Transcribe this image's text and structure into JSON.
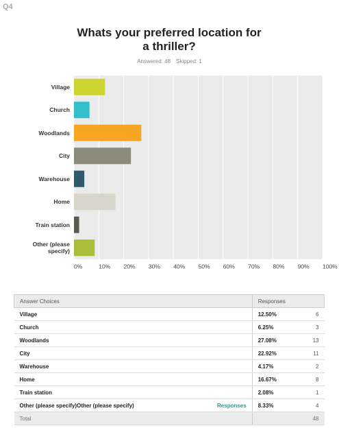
{
  "question": "Q4",
  "chart_data": {
    "type": "bar",
    "orientation": "horizontal",
    "title": "Whats your preferred location for a thriller?",
    "answered": "Answered: 48",
    "skipped": "Skipped: 1",
    "categories": [
      "Village",
      "Church",
      "Woodlands",
      "City",
      "Warehouse",
      "Home",
      "Train station",
      "Other (please specify)"
    ],
    "values": [
      12.5,
      6.25,
      27.08,
      22.92,
      4.17,
      16.67,
      2.08,
      8.33
    ],
    "colors": [
      "#cdd533",
      "#33bfc9",
      "#f6a623",
      "#8a8b7b",
      "#2f5c6d",
      "#d6d6ca",
      "#585c50",
      "#a9bd3b"
    ],
    "xlim": [
      0,
      100
    ],
    "xticks": [
      {
        "value": 0,
        "label": "0%"
      },
      {
        "value": 10,
        "label": "10%"
      },
      {
        "value": 20,
        "label": "20%"
      },
      {
        "value": 30,
        "label": "30%"
      },
      {
        "value": 40,
        "label": "40%"
      },
      {
        "value": 50,
        "label": "50%"
      },
      {
        "value": 60,
        "label": "60%"
      },
      {
        "value": 70,
        "label": "70%"
      },
      {
        "value": 80,
        "label": "80%"
      },
      {
        "value": 90,
        "label": "90%"
      },
      {
        "value": 100,
        "label": "100%"
      }
    ],
    "grid": true
  },
  "table": {
    "header": [
      "Answer Choices",
      "Responses"
    ],
    "rows": [
      [
        "Village",
        "12.50%",
        6
      ],
      [
        "Church",
        "6.25%",
        3
      ],
      [
        "Woodlands",
        "27.08%",
        13
      ],
      [
        "City",
        "22.92%",
        11
      ],
      [
        "Warehouse",
        "4.17%",
        2
      ],
      [
        "Home",
        "16.67%",
        8
      ],
      [
        "Train station",
        "2.08%",
        1
      ],
      [
        "Other (please specify)",
        "8.33%",
        4
      ]
    ],
    "link": "Responses",
    "total": [
      "Total",
      48
    ]
  }
}
